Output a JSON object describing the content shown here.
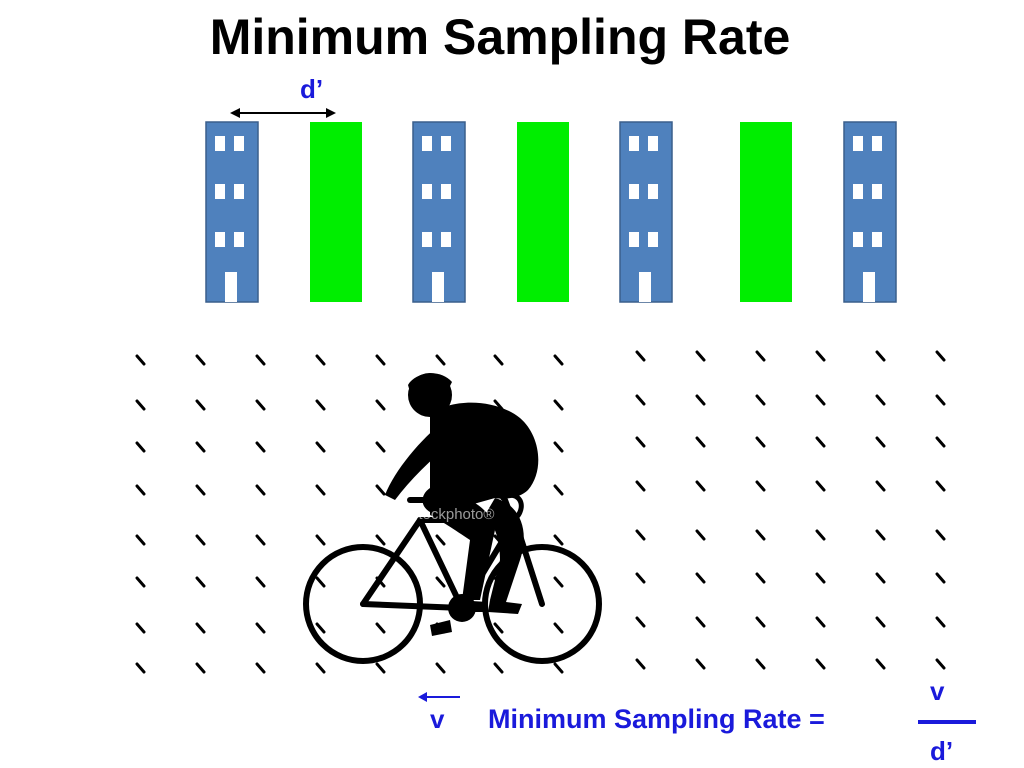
{
  "title": "Minimum Sampling Rate",
  "distance_label": "d’",
  "velocity_label": "v",
  "formula": {
    "text": "Minimum Sampling Rate =",
    "numerator": "v",
    "denominator": "d’"
  },
  "watermark": "iStockphoto®",
  "colors": {
    "building_blue": "#4f81bd",
    "building_outline": "#3a5f8c",
    "green_block": "#00ee00",
    "annotation_blue": "#1a1adb",
    "rain": "#000000",
    "silhouette": "#000000"
  },
  "scene": {
    "blocks": [
      "building",
      "green",
      "building",
      "green",
      "building",
      "green",
      "building"
    ]
  }
}
